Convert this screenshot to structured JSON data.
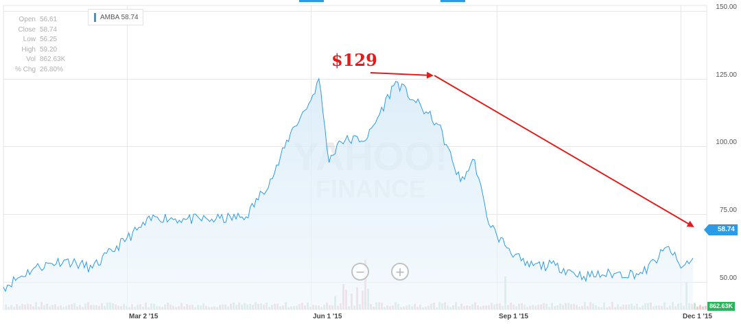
{
  "chart_data": {
    "type": "line",
    "ticker_label": "AMBA 58.74",
    "series": [
      {
        "name": "AMBA",
        "x": [
          "2014-12-31",
          "2015-01-15",
          "2015-01-30",
          "2015-02-13",
          "2015-03-02",
          "2015-03-16",
          "2015-03-31",
          "2015-04-15",
          "2015-04-30",
          "2015-05-14",
          "2015-05-22",
          "2015-06-01",
          "2015-06-05",
          "2015-06-10",
          "2015-06-15",
          "2015-06-29",
          "2015-07-13",
          "2015-07-22",
          "2015-08-03",
          "2015-08-14",
          "2015-08-21",
          "2015-08-27",
          "2015-09-01",
          "2015-09-15",
          "2015-09-30",
          "2015-10-14",
          "2015-10-29",
          "2015-11-12",
          "2015-11-25",
          "2015-12-01",
          "2015-12-07"
        ],
        "y": [
          48,
          55,
          58,
          55,
          66,
          74,
          73,
          73,
          74,
          90,
          105,
          117,
          125,
          94,
          102,
          103,
          124,
          117,
          108,
          87,
          95,
          74,
          67,
          56,
          56,
          52,
          53,
          53,
          63,
          55,
          58.74
        ]
      }
    ],
    "volume": {
      "label": "862.63K"
    },
    "ylim": [
      40,
      150
    ],
    "y_ticks": [
      "150.00",
      "125.00",
      "100.00",
      "75.00",
      "50.00"
    ],
    "y_tick_values": [
      150,
      125,
      100,
      75,
      50
    ],
    "x_ticks": [
      "Mar 2 '15",
      "Jun 1 '15",
      "Sep 1 '15",
      "Dec 1 '15"
    ],
    "x_tick_dates": [
      "2015-03-02",
      "2015-06-01",
      "2015-09-01",
      "2015-12-01"
    ],
    "x_range": [
      "2014-12-31",
      "2015-12-09"
    ],
    "grid": true,
    "line_color": "#2c9be6",
    "annotation": "$129",
    "annotation_color": "#e21b1b",
    "last_price_label": "58.74",
    "watermark": [
      "YAHOO!",
      "FINANCE"
    ]
  },
  "ohlc": [
    {
      "k": "Open",
      "v": "56.61"
    },
    {
      "k": "Close",
      "v": "58.74"
    },
    {
      "k": "Low",
      "v": "56.25"
    },
    {
      "k": "High",
      "v": "59.20"
    },
    {
      "k": "Vol",
      "v": "862.63K"
    },
    {
      "k": "% Chg",
      "v": "26.80%"
    }
  ],
  "controls": {
    "zoom_out": "−",
    "zoom_in": "+"
  }
}
